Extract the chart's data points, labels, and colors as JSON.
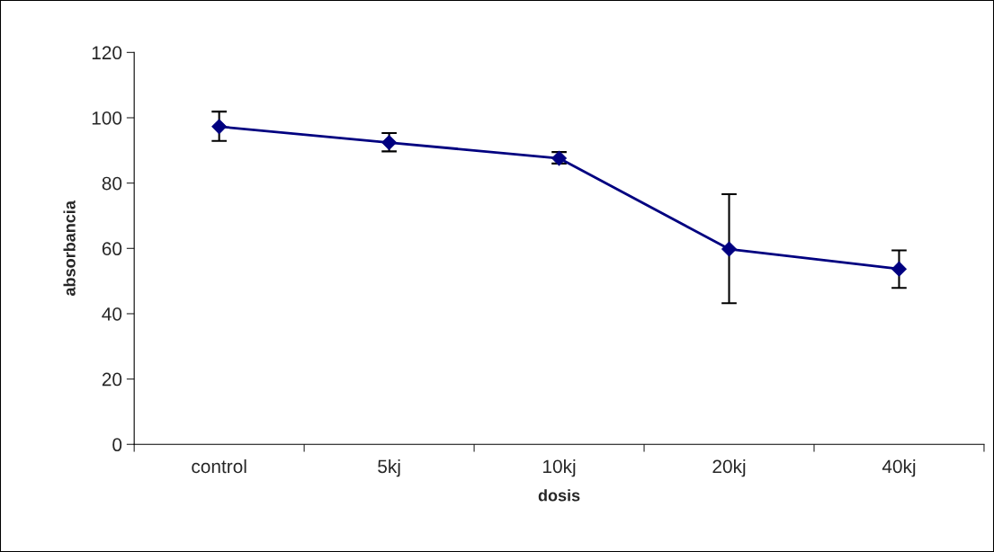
{
  "chart_data": {
    "type": "line",
    "xlabel": "dosis",
    "ylabel": "absorbancia",
    "categories": [
      "control",
      "5kj",
      "10kj",
      "20kj",
      "40kj"
    ],
    "series": [
      {
        "color": "#000080",
        "values": [
          97.3,
          92.4,
          87.6,
          59.8,
          53.7
        ],
        "errors": [
          [
            92.9,
            101.9
          ],
          [
            89.7,
            95.3
          ],
          [
            86.0,
            89.5
          ],
          [
            43.2,
            76.6
          ],
          [
            47.9,
            59.4
          ]
        ]
      }
    ],
    "ylim": [
      0,
      120
    ],
    "yticks": [
      0,
      20,
      40,
      60,
      80,
      100,
      120
    ],
    "grid": false,
    "legend": false,
    "marker": "diamond",
    "line_style": "solid"
  }
}
